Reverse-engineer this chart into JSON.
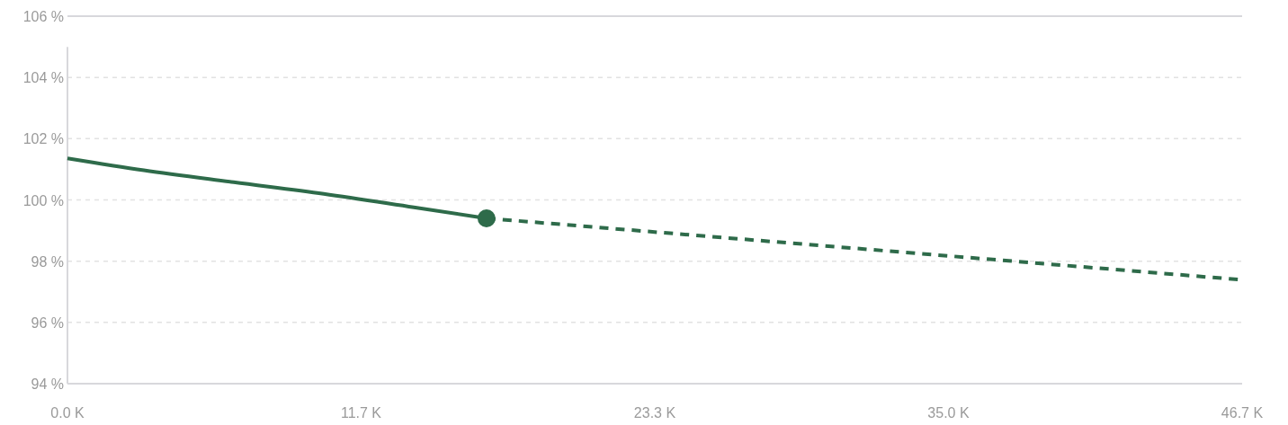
{
  "chart_data": {
    "type": "line",
    "xlim": [
      0,
      46.7
    ],
    "xticks": [
      {
        "value": 0,
        "label": "0.0 K"
      },
      {
        "value": 11.675,
        "label": "11.7 K"
      },
      {
        "value": 23.35,
        "label": "23.3 K"
      },
      {
        "value": 35.025,
        "label": "35.0 K"
      },
      {
        "value": 46.7,
        "label": "46.7 K"
      }
    ],
    "ylim": [
      94,
      106
    ],
    "yticks": [
      {
        "value": 94,
        "label": "94 %"
      },
      {
        "value": 96,
        "label": "96 %"
      },
      {
        "value": 98,
        "label": "98 %"
      },
      {
        "value": 100,
        "label": "100 %"
      },
      {
        "value": 102,
        "label": "102 %"
      },
      {
        "value": 104,
        "label": "104 %"
      },
      {
        "value": 106,
        "label": "106 %"
      }
    ],
    "grid": "y",
    "series": [
      {
        "color": "#2e6b4a",
        "line_style": "solid",
        "marker": "none",
        "x": [
          0,
          3.04,
          6.61,
          10.19,
          13.77,
          16.66
        ],
        "values": [
          101.36,
          100.97,
          100.58,
          100.2,
          99.76,
          99.4
        ]
      },
      {
        "color": "#2e6b4a",
        "line_style": "dashed",
        "marker": "none",
        "x": [
          16.66,
          46.7
        ],
        "values": [
          99.4,
          97.39
        ]
      },
      {
        "type": "scatter",
        "color": "#2e6b4a",
        "marker": "circle",
        "x": [
          16.66
        ],
        "values": [
          99.4
        ]
      }
    ]
  }
}
